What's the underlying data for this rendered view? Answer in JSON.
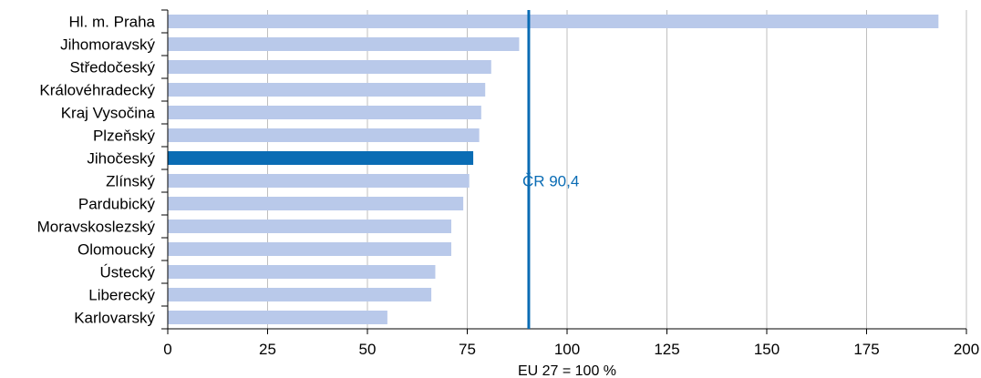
{
  "chart_data": {
    "type": "bar",
    "orientation": "horizontal",
    "title": "",
    "xlabel": "EU 27 = 100 %",
    "ylabel": "",
    "xlim": [
      0,
      200
    ],
    "xticks": [
      0,
      25,
      50,
      75,
      100,
      125,
      150,
      175,
      200
    ],
    "grid": "vertical",
    "legend": "none",
    "categories": [
      "Hl. m. Praha",
      "Jihomoravský",
      "Středočeský",
      "Královéhradecký",
      "Kraj Vysočina",
      "Plzeňský",
      "Jihočeský",
      "Zlínský",
      "Pardubický",
      "Moravskoslezský",
      "Olomoucký",
      "Ústecký",
      "Liberecký",
      "Karlovarský"
    ],
    "values": [
      193,
      88,
      81,
      79.5,
      78.5,
      78,
      76.5,
      75.5,
      74,
      71,
      71,
      67,
      66,
      55
    ],
    "highlight_category": "Jihočeský",
    "reference_line": {
      "value": 90.4,
      "label": "ČR 90,4"
    },
    "colors": {
      "bar": "#b9c9ea",
      "highlight": "#0a6cb4",
      "reference": "#0a6cb4",
      "grid": "#bfbfbf",
      "axis": "#000000"
    }
  }
}
